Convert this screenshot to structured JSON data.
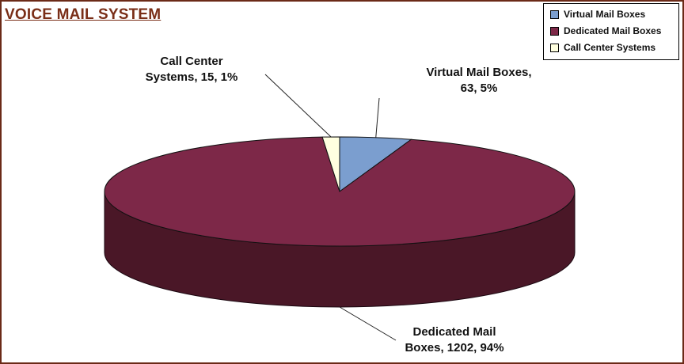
{
  "chart_data": {
    "type": "pie",
    "style": "3d",
    "title": "VOICE MAIL SYSTEM",
    "slices": [
      {
        "name": "Virtual Mail Boxes",
        "value": 63,
        "percent": 5,
        "color": "#7b9ecf"
      },
      {
        "name": "Dedicated Mail Boxes",
        "value": 1202,
        "percent": 94,
        "color": "#7d2848"
      },
      {
        "name": "Call Center Systems",
        "value": 15,
        "percent": 1,
        "color": "#ffffe0"
      }
    ],
    "data_labels": [
      {
        "line1": "Virtual Mail Boxes,",
        "line2": "63, 5%"
      },
      {
        "line1": "Dedicated Mail",
        "line2": "Boxes, 1202, 94%"
      },
      {
        "line1": "Call Center",
        "line2": "Systems, 15, 1%"
      }
    ],
    "legend_position": "top-right"
  },
  "colors": {
    "title": "#7a2e17",
    "frame_border": "#6b2a17",
    "side_dedicated": "#4a1727"
  }
}
